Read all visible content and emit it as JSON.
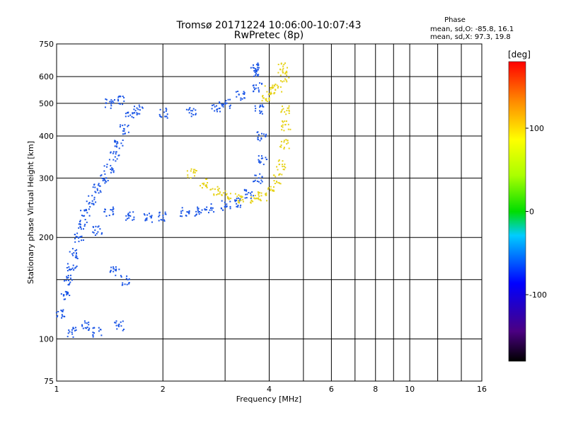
{
  "chart_data": {
    "type": "scatter",
    "title": "Tromsø 20171224 10:06:00-10:07:43",
    "subtitle": "RwPretec (8p)",
    "xlabel": "Frequency [MHz]",
    "ylabel": "Stationary phase Virtual Height [km]",
    "x_scale": "log",
    "y_scale": "log",
    "xlim": [
      1,
      16
    ],
    "ylim": [
      75,
      750
    ],
    "x_ticks": [
      1,
      2,
      4,
      6,
      8,
      10,
      16
    ],
    "x_tick_labels": [
      "1",
      "2",
      "4",
      "6",
      "8",
      "10",
      "16"
    ],
    "x_minor_ticks": [
      3,
      5,
      7,
      9,
      12,
      14
    ],
    "y_ticks": [
      75,
      100,
      200,
      300,
      400,
      500,
      600,
      750
    ],
    "y_tick_labels": [
      "75",
      "100",
      "200",
      "300",
      "400",
      "500",
      "600",
      "750"
    ],
    "y_minor_ticks": [
      150
    ],
    "grid": true,
    "phase_stats": {
      "title": "Phase",
      "o_line": "mean, sd,O: -85.8, 16.1",
      "x_line": "mean, sd,X:  97.3, 19.8"
    },
    "colorbar": {
      "label": "[deg]",
      "range": [
        -180,
        180
      ],
      "ticks": [
        100,
        0,
        -100
      ],
      "tick_labels": [
        "100",
        "0",
        "-100"
      ],
      "colormap": "rainbow (black-purple-blue-cyan-green-yellow-orange-red)"
    },
    "series": [
      {
        "name": "O",
        "phase_deg": -95,
        "color": "#1a55e6",
        "points": [
          [
            1.02,
            120
          ],
          [
            1.05,
            135
          ],
          [
            1.08,
            150
          ],
          [
            1.1,
            165
          ],
          [
            1.12,
            180
          ],
          [
            1.15,
            200
          ],
          [
            1.18,
            220
          ],
          [
            1.2,
            240
          ],
          [
            1.25,
            260
          ],
          [
            1.3,
            280
          ],
          [
            1.35,
            300
          ],
          [
            1.4,
            320
          ],
          [
            1.45,
            350
          ],
          [
            1.5,
            380
          ],
          [
            1.55,
            420
          ],
          [
            1.6,
            470
          ],
          [
            1.4,
            500
          ],
          [
            1.5,
            510
          ],
          [
            1.7,
            480
          ],
          [
            2.0,
            470
          ],
          [
            2.4,
            475
          ],
          [
            2.8,
            490
          ],
          [
            3.0,
            500
          ],
          [
            3.3,
            530
          ],
          [
            3.6,
            620
          ],
          [
            3.7,
            640
          ],
          [
            3.7,
            560
          ],
          [
            3.75,
            480
          ],
          [
            3.8,
            400
          ],
          [
            3.8,
            340
          ],
          [
            3.7,
            300
          ],
          [
            3.5,
            270
          ],
          [
            3.2,
            255
          ],
          [
            3.0,
            250
          ],
          [
            2.7,
            245
          ],
          [
            2.5,
            240
          ],
          [
            2.3,
            238
          ],
          [
            2.0,
            232
          ],
          [
            1.8,
            230
          ],
          [
            1.6,
            232
          ],
          [
            1.4,
            240
          ],
          [
            1.3,
            210
          ],
          [
            1.1,
            105
          ],
          [
            1.2,
            110
          ],
          [
            1.3,
            105
          ],
          [
            1.5,
            110
          ],
          [
            1.55,
            150
          ],
          [
            1.45,
            160
          ]
        ]
      },
      {
        "name": "X",
        "phase_deg": 97,
        "color": "#e6d21a",
        "points": [
          [
            2.4,
            310
          ],
          [
            2.6,
            290
          ],
          [
            2.8,
            275
          ],
          [
            3.0,
            268
          ],
          [
            3.3,
            262
          ],
          [
            3.6,
            260
          ],
          [
            3.8,
            265
          ],
          [
            4.0,
            275
          ],
          [
            4.2,
            300
          ],
          [
            4.3,
            330
          ],
          [
            4.4,
            380
          ],
          [
            4.45,
            430
          ],
          [
            4.4,
            480
          ],
          [
            4.4,
            600
          ],
          [
            4.35,
            640
          ],
          [
            4.2,
            560
          ],
          [
            4.0,
            550
          ],
          [
            3.9,
            520
          ]
        ]
      }
    ]
  }
}
